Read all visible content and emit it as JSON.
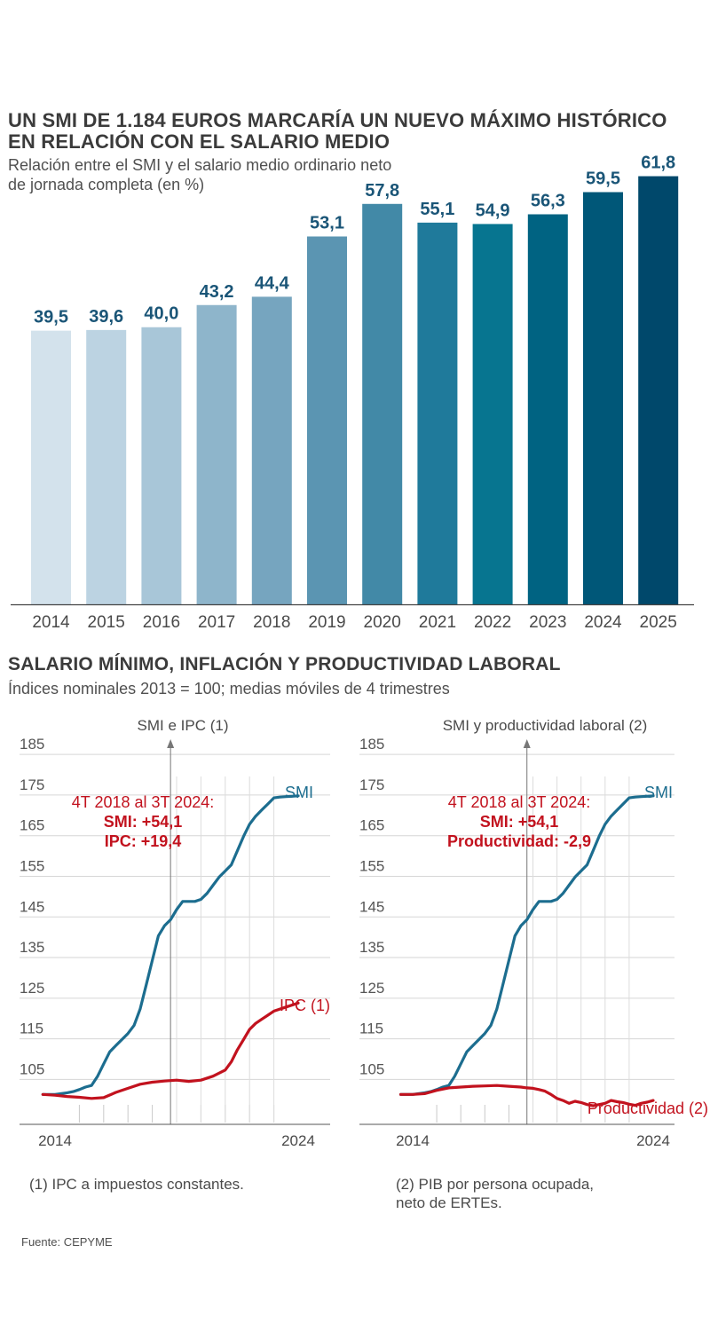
{
  "colors": {
    "smi_line": "#1c6d8f",
    "ipc_line": "#c2121e",
    "annotation": "#c2121e",
    "bar_label": "#1a5577",
    "bar_palette": [
      "#d3e2ec",
      "#bcd3e2",
      "#a8c6d8",
      "#8eb5cb",
      "#76a5bf",
      "#5b95b2",
      "#4289a7",
      "#1f7a9b",
      "#077590",
      "#006382",
      "#005778",
      "#00486b"
    ]
  },
  "chart1": {
    "title_line1": "UN SMI DE 1.184 EUROS MARCARÍA UN NUEVO MÁXIMO HISTÓRICO",
    "title_line2": "EN RELACIÓN CON EL SALARIO MEDIO",
    "subtitle_line1": "Relación entre el SMI y el salario medio ordinario neto",
    "subtitle_line2": "de jornada completa (en %)"
  },
  "chart2": {
    "title": "SALARIO MÍNIMO, INFLACIÓN Y PRODUCTIVIDAD LABORAL",
    "subtitle": "Índices nominales 2013 = 100; medias móviles de 4 trimestres",
    "left_note": "(1) IPC a impuestos constantes.",
    "right_note_line1": "(2) PIB por persona ocupada,",
    "right_note_line2": "neto de ERTEs."
  },
  "source": "Fuente: CEPYME",
  "chart_data": [
    {
      "type": "bar",
      "title": "UN SMI DE 1.184 EUROS MARCARÍA UN NUEVO MÁXIMO HISTÓRICO EN RELACIÓN CON EL SALARIO MEDIO",
      "subtitle": "Relación entre el SMI y el salario medio ordinario neto de jornada completa (en %)",
      "categories": [
        "2014",
        "2015",
        "2016",
        "2017",
        "2018",
        "2019",
        "2020",
        "2021",
        "2022",
        "2023",
        "2024",
        "2025"
      ],
      "values": [
        39.5,
        39.6,
        40.0,
        43.2,
        44.4,
        53.1,
        57.8,
        55.1,
        54.9,
        56.3,
        59.5,
        61.8
      ],
      "value_labels": [
        "39,5",
        "39,6",
        "40,0",
        "43,2",
        "44,4",
        "53,1",
        "57,8",
        "55,1",
        "54,9",
        "56,3",
        "59,5",
        "61,8"
      ],
      "xlabel": "",
      "ylabel": "",
      "ylim": [
        0,
        62
      ]
    },
    {
      "type": "line",
      "title": "SMI e IPC (1)",
      "x_ticks": [
        "2014",
        "2024"
      ],
      "yticks": [
        "185",
        "175",
        "165",
        "155",
        "145",
        "135",
        "125",
        "115",
        "105"
      ],
      "ylim": [
        97,
        187
      ],
      "xlim": [
        2014,
        2024
      ],
      "divider_year": 2018.75,
      "series": [
        {
          "name": "SMI",
          "x": [
            2013.5,
            2014.0,
            2014.5,
            2014.75,
            2015.0,
            2015.25,
            2015.5,
            2015.75,
            2016.0,
            2016.25,
            2016.5,
            2016.75,
            2017.0,
            2017.25,
            2017.5,
            2017.75,
            2018.0,
            2018.25,
            2018.5,
            2018.75,
            2019.0,
            2019.25,
            2019.5,
            2019.75,
            2020.0,
            2020.25,
            2020.5,
            2020.75,
            2021.0,
            2021.25,
            2021.5,
            2021.75,
            2022.0,
            2022.25,
            2022.5,
            2022.75,
            2023.0,
            2023.25,
            2023.5,
            2023.75,
            2024.0
          ],
          "values": [
            100,
            100,
            100.4,
            100.7,
            101.2,
            101.8,
            102.2,
            104.5,
            107.5,
            110.5,
            112.0,
            113.5,
            115.0,
            117.0,
            121.0,
            127.0,
            133.0,
            139.0,
            141.5,
            143.0,
            145.5,
            147.5,
            147.5,
            147.5,
            148.0,
            149.5,
            151.5,
            153.5,
            155.0,
            156.5,
            160.0,
            163.5,
            166.5,
            168.5,
            170.0,
            171.5,
            173.0,
            173.2,
            173.3,
            173.4,
            173.5
          ],
          "value_label": "SMI"
        },
        {
          "name": "IPC (1)",
          "x": [
            2013.5,
            2014.0,
            2014.5,
            2015.0,
            2015.5,
            2016.0,
            2016.5,
            2017.0,
            2017.5,
            2018.0,
            2018.5,
            2019.0,
            2019.5,
            2020.0,
            2020.5,
            2021.0,
            2021.25,
            2021.5,
            2021.75,
            2022.0,
            2022.25,
            2022.5,
            2022.75,
            2023.0,
            2023.5,
            2024.0
          ],
          "values": [
            100,
            99.8,
            99.5,
            99.3,
            99.0,
            99.2,
            100.5,
            101.5,
            102.5,
            103.0,
            103.3,
            103.5,
            103.2,
            103.5,
            104.5,
            106.0,
            108.0,
            111.0,
            113.5,
            116.0,
            117.5,
            118.5,
            119.5,
            120.5,
            121.5,
            122.5
          ],
          "value_label": "IPC (1)"
        }
      ],
      "annotation": [
        "4T 2018 al 3T 2024:",
        "SMI: +54,1",
        "IPC: +19,4"
      ]
    },
    {
      "type": "line",
      "title": "SMI y productividad laboral (2)",
      "x_ticks": [
        "2014",
        "2024"
      ],
      "yticks": [
        "185",
        "175",
        "165",
        "155",
        "145",
        "135",
        "125",
        "115",
        "105"
      ],
      "ylim": [
        97,
        187
      ],
      "xlim": [
        2014,
        2024
      ],
      "divider_year": 2018.75,
      "series": [
        {
          "name": "SMI",
          "x": [
            2013.5,
            2014.0,
            2014.5,
            2014.75,
            2015.0,
            2015.25,
            2015.5,
            2015.75,
            2016.0,
            2016.25,
            2016.5,
            2016.75,
            2017.0,
            2017.25,
            2017.5,
            2017.75,
            2018.0,
            2018.25,
            2018.5,
            2018.75,
            2019.0,
            2019.25,
            2019.5,
            2019.75,
            2020.0,
            2020.25,
            2020.5,
            2020.75,
            2021.0,
            2021.25,
            2021.5,
            2021.75,
            2022.0,
            2022.25,
            2022.5,
            2022.75,
            2023.0,
            2023.25,
            2023.5,
            2023.75,
            2024.0
          ],
          "values": [
            100,
            100,
            100.4,
            100.7,
            101.2,
            101.8,
            102.2,
            104.5,
            107.5,
            110.5,
            112.0,
            113.5,
            115.0,
            117.0,
            121.0,
            127.0,
            133.0,
            139.0,
            141.5,
            143.0,
            145.5,
            147.5,
            147.5,
            147.5,
            148.0,
            149.5,
            151.5,
            153.5,
            155.0,
            156.5,
            160.0,
            163.5,
            166.5,
            168.5,
            170.0,
            171.5,
            173.0,
            173.2,
            173.3,
            173.4,
            173.5
          ],
          "value_label": "SMI"
        },
        {
          "name": "Productividad (2)",
          "x": [
            2013.5,
            2014.0,
            2014.5,
            2015.0,
            2015.5,
            2016.0,
            2016.5,
            2017.0,
            2017.5,
            2018.0,
            2018.5,
            2018.75,
            2019.0,
            2019.25,
            2019.5,
            2019.75,
            2020.0,
            2020.25,
            2020.5,
            2020.75,
            2021.0,
            2021.25,
            2021.5,
            2021.75,
            2022.0,
            2022.25,
            2022.5,
            2022.75,
            2023.0,
            2023.25,
            2023.5,
            2023.75,
            2024.0
          ],
          "values": [
            100,
            100,
            100.2,
            101,
            101.6,
            101.8,
            102,
            102.1,
            102.2,
            102,
            101.8,
            101.6,
            101.5,
            101.2,
            100.8,
            100,
            99,
            98.5,
            97.8,
            98.3,
            98.0,
            97.5,
            97.2,
            97.5,
            97.8,
            98.5,
            98.2,
            98.0,
            97.6,
            97.3,
            97.8,
            98.1,
            98.5
          ],
          "value_label": "Productividad (2)"
        }
      ],
      "annotation": [
        "4T 2018 al 3T 2024:",
        "SMI: +54,1",
        "Productividad: -2,9"
      ]
    }
  ]
}
